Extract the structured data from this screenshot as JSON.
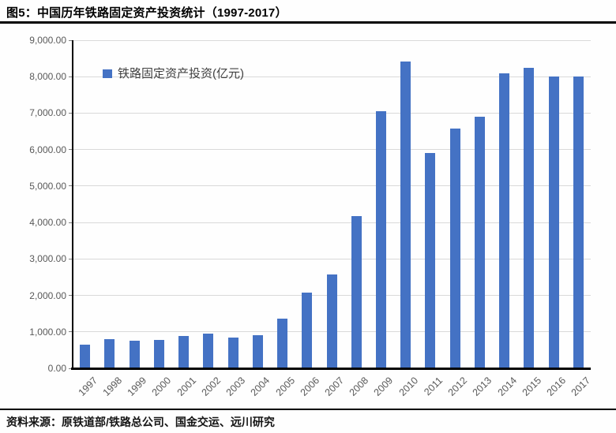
{
  "header": {
    "title": "图5：中国历年铁路固定资产投资统计（1997-2017）"
  },
  "footer": {
    "source": "资料来源：原铁道部/铁路总公司、国金交运、远川研究"
  },
  "colors": {
    "bar": "#4472C4",
    "gridline": "#D9D9D9",
    "axis": "#000000",
    "tick_mark": "#7F7F7F",
    "tick_label": "#595959",
    "divider": "#000000"
  },
  "chart_data": {
    "type": "bar",
    "title": "图5：中国历年铁路固定资产投资统计（1997-2017）",
    "legend": [
      {
        "label": "铁路固定资产投资(亿元)",
        "color": "#4472C4"
      }
    ],
    "legend_position": "inside-top-left",
    "categories": [
      "1997",
      "1998",
      "1999",
      "2000",
      "2001",
      "2002",
      "2003",
      "2004",
      "2005",
      "2006",
      "2007",
      "2008",
      "2009",
      "2010",
      "2011",
      "2012",
      "2013",
      "2014",
      "2015",
      "2016",
      "2017"
    ],
    "series": [
      {
        "name": "铁路固定资产投资(亿元)",
        "color": "#4472C4",
        "values": [
          653,
          809,
          755,
          772,
          885,
          956,
          852,
          901,
          1364,
          2088,
          2565,
          4168,
          7045,
          8427,
          5906,
          6579,
          6905,
          8088,
          8238,
          8015,
          8010
        ]
      }
    ],
    "xlabel": "",
    "ylabel": "",
    "ylim": [
      0,
      9000
    ],
    "ytick_step": 1000,
    "ytick_labels": [
      "0.00",
      "1,000.00",
      "2,000.00",
      "3,000.00",
      "4,000.00",
      "5,000.00",
      "6,000.00",
      "7,000.00",
      "8,000.00",
      "9,000.00"
    ],
    "grid": true
  }
}
